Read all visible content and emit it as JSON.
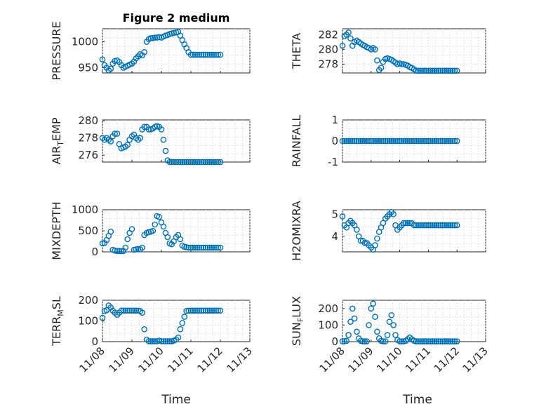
{
  "figure": {
    "title": "Figure 2 medium",
    "xlabel": "Time"
  },
  "chart_data": [
    {
      "type": "scatter",
      "ylabel": "PRESSURE",
      "ylim": [
        940,
        1025
      ],
      "yticks": [
        950,
        1000
      ],
      "xlim": [
        0,
        5
      ],
      "xticks": [
        "11/08",
        "11/09",
        "11/10",
        "11/11",
        "11/12",
        "11/13"
      ],
      "show_xticks": false,
      "grid": true,
      "x": [
        0.0,
        0.07,
        0.14,
        0.21,
        0.28,
        0.35,
        0.42,
        0.5,
        0.57,
        0.64,
        0.71,
        0.78,
        0.85,
        0.92,
        1.0,
        1.07,
        1.14,
        1.21,
        1.28,
        1.35,
        1.42,
        1.5,
        1.57,
        1.64,
        1.71,
        1.78,
        1.85,
        1.92,
        2.0,
        2.07,
        2.14,
        2.21,
        2.28,
        2.35,
        2.42,
        2.5,
        2.57,
        2.64,
        2.71,
        2.78,
        2.85,
        2.92,
        3.0,
        3.07,
        3.14,
        3.21,
        3.28,
        3.35,
        3.42,
        3.5,
        3.57,
        3.64,
        3.71,
        3.78,
        3.85,
        3.92,
        4.0
      ],
      "y": [
        966,
        955,
        950,
        945,
        948,
        958,
        963,
        964,
        961,
        955,
        950,
        952,
        954,
        956,
        958,
        962,
        968,
        972,
        976,
        974,
        980,
        1000,
        1005,
        1007,
        1007,
        1008,
        1008,
        1009,
        1008,
        1010,
        1012,
        1013,
        1015,
        1016,
        1017,
        1018,
        1019,
        1012,
        1003,
        995,
        988,
        980,
        975,
        975,
        975,
        975,
        975,
        975,
        975,
        975,
        975,
        975,
        975,
        975,
        975,
        975,
        975
      ]
    },
    {
      "type": "scatter",
      "ylabel": "THETA",
      "ylim": [
        276.8,
        282.8
      ],
      "yticks": [
        278,
        280,
        282
      ],
      "xlim": [
        0,
        5
      ],
      "xticks": [
        "11/08",
        "11/09",
        "11/10",
        "11/11",
        "11/12",
        "11/13"
      ],
      "show_xticks": false,
      "grid": true,
      "x": [
        0.0,
        0.07,
        0.14,
        0.21,
        0.28,
        0.35,
        0.42,
        0.5,
        0.57,
        0.64,
        0.71,
        0.78,
        0.85,
        0.92,
        1.0,
        1.07,
        1.14,
        1.21,
        1.28,
        1.35,
        1.42,
        1.5,
        1.57,
        1.64,
        1.71,
        1.78,
        1.85,
        1.92,
        2.0,
        2.07,
        2.14,
        2.21,
        2.28,
        2.35,
        2.42,
        2.5,
        2.57,
        2.64,
        2.71,
        2.78,
        2.85,
        2.92,
        3.0,
        3.07,
        3.14,
        3.21,
        3.28,
        3.35,
        3.42,
        3.5,
        3.57,
        3.64,
        3.71,
        3.78,
        3.85,
        3.92,
        4.0
      ],
      "y": [
        280.5,
        281.8,
        282.0,
        282.3,
        281.5,
        280.5,
        281.0,
        281.2,
        281.0,
        280.8,
        280.6,
        280.5,
        280.3,
        280.2,
        280.0,
        280.2,
        280.0,
        278.5,
        277.2,
        277.5,
        278.3,
        278.7,
        278.8,
        278.7,
        278.6,
        278.4,
        278.2,
        278.0,
        278.1,
        278.0,
        278.0,
        277.9,
        277.8,
        277.6,
        277.5,
        277.3,
        277.1,
        277.1,
        277.1,
        277.1,
        277.1,
        277.1,
        277.1,
        277.1,
        277.1,
        277.1,
        277.1,
        277.1,
        277.1,
        277.1,
        277.1,
        277.1,
        277.1,
        277.1,
        277.1,
        277.1,
        277.1
      ]
    },
    {
      "type": "scatter",
      "ylabel": "AIR_TEMP",
      "ylim": [
        275.2,
        280.1
      ],
      "yticks": [
        276,
        278,
        280
      ],
      "xlim": [
        0,
        5
      ],
      "xticks": [
        "11/08",
        "11/09",
        "11/10",
        "11/11",
        "11/12",
        "11/13"
      ],
      "show_xticks": false,
      "grid": true,
      "x": [
        0.0,
        0.07,
        0.14,
        0.21,
        0.28,
        0.35,
        0.42,
        0.5,
        0.57,
        0.64,
        0.71,
        0.78,
        0.85,
        0.92,
        1.0,
        1.07,
        1.14,
        1.21,
        1.28,
        1.35,
        1.42,
        1.5,
        1.57,
        1.64,
        1.71,
        1.78,
        1.85,
        1.92,
        2.0,
        2.07,
        2.14,
        2.21,
        2.28,
        2.35,
        2.42,
        2.5,
        2.57,
        2.64,
        2.71,
        2.78,
        2.85,
        2.92,
        3.0,
        3.07,
        3.14,
        3.21,
        3.28,
        3.35,
        3.42,
        3.5,
        3.57,
        3.64,
        3.71,
        3.78,
        3.85,
        3.92,
        4.0
      ],
      "y": [
        278.0,
        277.8,
        278.0,
        277.8,
        277.6,
        278.2,
        278.5,
        278.5,
        277.3,
        276.8,
        276.9,
        277.0,
        277.2,
        277.8,
        278.2,
        278.4,
        278.0,
        277.8,
        278.0,
        279.0,
        279.3,
        279.3,
        279.0,
        279.0,
        279.1,
        279.3,
        279.4,
        279.3,
        279.0,
        277.8,
        276.5,
        275.4,
        275.2,
        275.2,
        275.2,
        275.2,
        275.2,
        275.2,
        275.2,
        275.2,
        275.2,
        275.2,
        275.2,
        275.2,
        275.2,
        275.2,
        275.2,
        275.2,
        275.2,
        275.2,
        275.2,
        275.2,
        275.2,
        275.2,
        275.2,
        275.2,
        275.2
      ]
    },
    {
      "type": "scatter",
      "ylabel": "RAINFALL",
      "ylim": [
        -1,
        1
      ],
      "yticks": [
        -1,
        0,
        1
      ],
      "xlim": [
        0,
        5
      ],
      "xticks": [
        "11/08",
        "11/09",
        "11/10",
        "11/11",
        "11/12",
        "11/13"
      ],
      "show_xticks": false,
      "grid": true,
      "x": [
        0.0,
        0.07,
        0.14,
        0.21,
        0.28,
        0.35,
        0.42,
        0.5,
        0.57,
        0.64,
        0.71,
        0.78,
        0.85,
        0.92,
        1.0,
        1.07,
        1.14,
        1.21,
        1.28,
        1.35,
        1.42,
        1.5,
        1.57,
        1.64,
        1.71,
        1.78,
        1.85,
        1.92,
        2.0,
        2.07,
        2.14,
        2.21,
        2.28,
        2.35,
        2.42,
        2.5,
        2.57,
        2.64,
        2.71,
        2.78,
        2.85,
        2.92,
        3.0,
        3.07,
        3.14,
        3.21,
        3.28,
        3.35,
        3.42,
        3.5,
        3.57,
        3.64,
        3.71,
        3.78,
        3.85,
        3.92,
        4.0
      ],
      "y": [
        0,
        0,
        0,
        0,
        0,
        0,
        0,
        0,
        0,
        0,
        0,
        0,
        0,
        0,
        0,
        0,
        0,
        0,
        0,
        0,
        0,
        0,
        0,
        0,
        0,
        0,
        0,
        0,
        0,
        0,
        0,
        0,
        0,
        0,
        0,
        0,
        0,
        0,
        0,
        0,
        0,
        0,
        0,
        0,
        0,
        0,
        0,
        0,
        0,
        0,
        0,
        0,
        0,
        0,
        0,
        0,
        0
      ]
    },
    {
      "type": "scatter",
      "ylabel": "MIXDEPTH",
      "ylim": [
        0,
        1000
      ],
      "yticks": [
        0,
        500,
        1000
      ],
      "xlim": [
        0,
        5
      ],
      "xticks": [
        "11/08",
        "11/09",
        "11/10",
        "11/11",
        "11/12",
        "11/13"
      ],
      "show_xticks": false,
      "grid": true,
      "x": [
        0.0,
        0.07,
        0.14,
        0.21,
        0.28,
        0.35,
        0.42,
        0.5,
        0.57,
        0.64,
        0.71,
        0.78,
        0.85,
        0.92,
        1.0,
        1.07,
        1.14,
        1.21,
        1.28,
        1.35,
        1.42,
        1.5,
        1.57,
        1.64,
        1.71,
        1.78,
        1.85,
        1.92,
        2.0,
        2.07,
        2.14,
        2.21,
        2.28,
        2.35,
        2.42,
        2.5,
        2.57,
        2.64,
        2.71,
        2.78,
        2.85,
        2.92,
        3.0,
        3.07,
        3.14,
        3.21,
        3.28,
        3.35,
        3.42,
        3.5,
        3.57,
        3.64,
        3.71,
        3.78,
        3.85,
        3.92,
        4.0
      ],
      "y": [
        200,
        210,
        280,
        380,
        480,
        50,
        30,
        20,
        20,
        15,
        20,
        100,
        300,
        450,
        540,
        50,
        60,
        70,
        60,
        100,
        400,
        450,
        470,
        480,
        500,
        650,
        850,
        830,
        700,
        600,
        450,
        350,
        200,
        180,
        250,
        350,
        400,
        300,
        150,
        120,
        110,
        100,
        100,
        100,
        100,
        100,
        100,
        100,
        100,
        100,
        100,
        100,
        100,
        100,
        100,
        100,
        100
      ]
    },
    {
      "type": "scatter",
      "ylabel": "H2OMIXRA",
      "ylim": [
        3.3,
        5.2
      ],
      "yticks": [
        4,
        5
      ],
      "xlim": [
        0,
        5
      ],
      "xticks": [
        "11/08",
        "11/09",
        "11/10",
        "11/11",
        "11/12",
        "11/13"
      ],
      "show_xticks": false,
      "grid": true,
      "x": [
        0.0,
        0.07,
        0.14,
        0.21,
        0.28,
        0.35,
        0.42,
        0.5,
        0.57,
        0.64,
        0.71,
        0.78,
        0.85,
        0.92,
        1.0,
        1.07,
        1.14,
        1.21,
        1.28,
        1.35,
        1.42,
        1.5,
        1.57,
        1.64,
        1.71,
        1.78,
        1.85,
        1.92,
        2.0,
        2.07,
        2.14,
        2.21,
        2.28,
        2.35,
        2.42,
        2.5,
        2.57,
        2.64,
        2.71,
        2.78,
        2.85,
        2.92,
        3.0,
        3.07,
        3.14,
        3.21,
        3.28,
        3.35,
        3.42,
        3.5,
        3.57,
        3.64,
        3.71,
        3.78,
        3.85,
        3.92,
        4.0
      ],
      "y": [
        4.9,
        4.5,
        4.4,
        4.6,
        4.7,
        4.6,
        4.5,
        4.3,
        4.0,
        3.8,
        3.8,
        3.7,
        3.7,
        3.6,
        3.5,
        3.4,
        3.6,
        3.9,
        4.2,
        4.4,
        4.6,
        4.8,
        4.9,
        5.0,
        5.1,
        5.0,
        4.5,
        4.3,
        4.4,
        4.5,
        4.6,
        4.6,
        4.6,
        4.6,
        4.6,
        4.5,
        4.5,
        4.5,
        4.5,
        4.5,
        4.5,
        4.5,
        4.5,
        4.5,
        4.5,
        4.5,
        4.5,
        4.5,
        4.5,
        4.5,
        4.5,
        4.5,
        4.5,
        4.5,
        4.5,
        4.5,
        4.5
      ]
    },
    {
      "type": "scatter",
      "ylabel": "TERR_MSL",
      "ylim": [
        0,
        200
      ],
      "yticks": [
        0,
        100,
        200
      ],
      "xlim": [
        0,
        5
      ],
      "xticks": [
        "11/08",
        "11/09",
        "11/10",
        "11/11",
        "11/12",
        "11/13"
      ],
      "show_xticks": true,
      "grid": true,
      "x": [
        0.0,
        0.07,
        0.14,
        0.21,
        0.28,
        0.35,
        0.42,
        0.5,
        0.57,
        0.64,
        0.71,
        0.78,
        0.85,
        0.92,
        1.0,
        1.07,
        1.14,
        1.21,
        1.28,
        1.35,
        1.42,
        1.5,
        1.57,
        1.64,
        1.71,
        1.78,
        1.85,
        1.92,
        2.0,
        2.07,
        2.14,
        2.21,
        2.28,
        2.35,
        2.42,
        2.5,
        2.57,
        2.64,
        2.71,
        2.78,
        2.85,
        2.92,
        3.0,
        3.07,
        3.14,
        3.21,
        3.28,
        3.35,
        3.42,
        3.5,
        3.57,
        3.64,
        3.71,
        3.78,
        3.85,
        3.92,
        4.0
      ],
      "y": [
        115,
        148,
        152,
        175,
        165,
        150,
        140,
        130,
        140,
        150,
        150,
        150,
        150,
        150,
        150,
        150,
        150,
        150,
        148,
        140,
        60,
        10,
        2,
        2,
        2,
        2,
        2,
        5,
        2,
        2,
        2,
        2,
        2,
        2,
        5,
        10,
        20,
        60,
        90,
        120,
        148,
        150,
        150,
        150,
        150,
        150,
        150,
        150,
        150,
        150,
        150,
        150,
        150,
        150,
        150,
        150,
        150
      ]
    },
    {
      "type": "scatter",
      "ylabel": "SUN_FLUX",
      "ylim": [
        0,
        250
      ],
      "yticks": [
        0,
        100,
        200
      ],
      "xlim": [
        0,
        5
      ],
      "xticks": [
        "11/08",
        "11/09",
        "11/10",
        "11/11",
        "11/12",
        "11/13"
      ],
      "show_xticks": true,
      "grid": true,
      "x": [
        0.0,
        0.07,
        0.14,
        0.21,
        0.28,
        0.35,
        0.42,
        0.5,
        0.57,
        0.64,
        0.71,
        0.78,
        0.85,
        0.92,
        1.0,
        1.07,
        1.14,
        1.21,
        1.28,
        1.35,
        1.42,
        1.5,
        1.57,
        1.64,
        1.71,
        1.78,
        1.85,
        1.92,
        2.0,
        2.07,
        2.14,
        2.21,
        2.28,
        2.35,
        2.42,
        2.5,
        2.57,
        2.64,
        2.71,
        2.78,
        2.85,
        2.92,
        3.0,
        3.07,
        3.14,
        3.21,
        3.28,
        3.35,
        3.42,
        3.5,
        3.57,
        3.64,
        3.71,
        3.78,
        3.85,
        3.92,
        4.0
      ],
      "y": [
        2,
        2,
        5,
        40,
        120,
        200,
        140,
        60,
        20,
        5,
        2,
        2,
        2,
        100,
        200,
        230,
        150,
        60,
        20,
        5,
        2,
        2,
        40,
        120,
        160,
        100,
        40,
        10,
        2,
        2,
        2,
        5,
        15,
        25,
        15,
        5,
        2,
        2,
        2,
        2,
        2,
        2,
        2,
        2,
        2,
        2,
        2,
        2,
        2,
        2,
        2,
        2,
        2,
        2,
        2,
        2,
        2
      ]
    }
  ]
}
